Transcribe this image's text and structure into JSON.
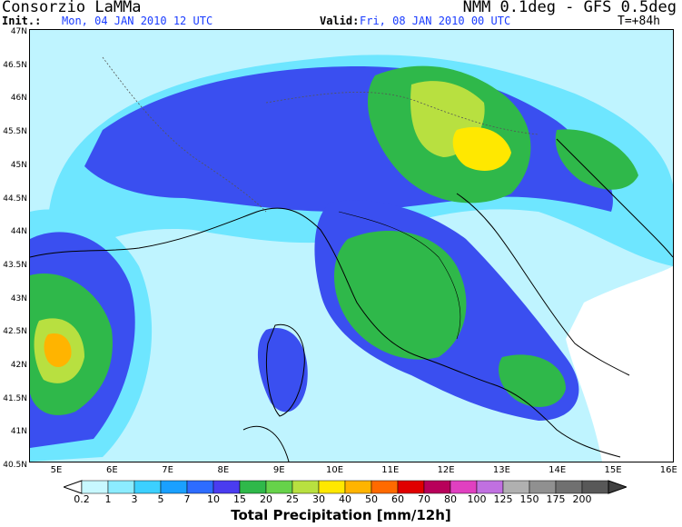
{
  "header": {
    "title_left": "Consorzio LaMMa",
    "title_right": "NMM 0.1deg - GFS 0.5deg",
    "init_label": "Init.:",
    "init_value": "Mon, 04 JAN 2010   12 UTC",
    "valid_label": "Valid:",
    "valid_value": "Fri, 08 JAN 2010   00 UTC",
    "lead_time": "T=+84h"
  },
  "map": {
    "lat_labels": [
      "47N",
      "46.5N",
      "46N",
      "45.5N",
      "45N",
      "44.5N",
      "44N",
      "43.5N",
      "43N",
      "42.5N",
      "42N",
      "41.5N",
      "41N",
      "40.5N"
    ],
    "lon_labels": [
      "5E",
      "6E",
      "7E",
      "8E",
      "9E",
      "10E",
      "11E",
      "12E",
      "13E",
      "14E",
      "15E",
      "16E"
    ]
  },
  "colorbar": {
    "title": "Total Precipitation [mm/12h]",
    "labels": [
      "0.2",
      "1",
      "3",
      "5",
      "7",
      "10",
      "15",
      "20",
      "25",
      "30",
      "40",
      "50",
      "60",
      "70",
      "80",
      "100",
      "125",
      "150",
      "175",
      "200"
    ],
    "colors": [
      "#c8f8ff",
      "#8cecff",
      "#3cd0ff",
      "#1aa0ff",
      "#2d6cff",
      "#4a3cf0",
      "#2fb84a",
      "#66d24a",
      "#b8e040",
      "#ffe800",
      "#ffb400",
      "#ff6a00",
      "#e00000",
      "#b8005a",
      "#e040c0",
      "#c070e0",
      "#b0b0b0",
      "#909090",
      "#707070",
      "#585858"
    ]
  }
}
